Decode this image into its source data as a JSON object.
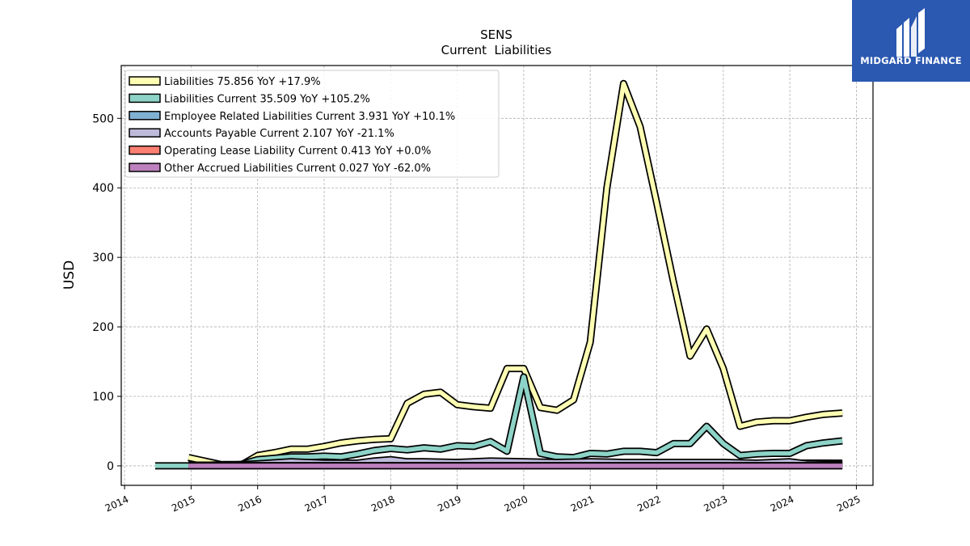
{
  "brand": {
    "name": "MIDGARD FINANCE",
    "color": "#2b58b0"
  },
  "chart_data": {
    "type": "line",
    "title": "SENS",
    "subtitle": "Current  Liabilities",
    "xlabel": "",
    "ylabel": "USD",
    "xlim": [
      2013.95,
      2025.25
    ],
    "ylim": [
      -28,
      576
    ],
    "xticks": [
      "2014",
      "2015",
      "2016",
      "2017",
      "2018",
      "2019",
      "2020",
      "2021",
      "2022",
      "2023",
      "2024",
      "2025"
    ],
    "yticks": [
      0,
      100,
      200,
      300,
      400,
      500
    ],
    "grid": true,
    "legend_position": "top-left",
    "series": [
      {
        "name": "Liabilities",
        "legend": "Liabilities  75.856 YoY +17.9%",
        "color": "#ffffb3",
        "x": [
          2014.96,
          2015.25,
          2015.5,
          2015.75,
          2016.0,
          2016.25,
          2016.5,
          2016.75,
          2017.0,
          2017.25,
          2017.5,
          2017.75,
          2018.0,
          2018.25,
          2018.5,
          2018.75,
          2019.0,
          2019.25,
          2019.5,
          2019.75,
          2020.0,
          2020.25,
          2020.5,
          2020.75,
          2021.0,
          2021.25,
          2021.5,
          2021.75,
          2022.0,
          2022.25,
          2022.5,
          2022.75,
          2023.0,
          2023.25,
          2023.5,
          2023.75,
          2024.0,
          2024.25,
          2024.5,
          2024.79
        ],
        "values": [
          12,
          6,
          1,
          1,
          15,
          19,
          24,
          24,
          28,
          33,
          36,
          38,
          39,
          90,
          103,
          106,
          88,
          85,
          83,
          140,
          140,
          84,
          80,
          95,
          178,
          400,
          550,
          488,
          378,
          265,
          158,
          197,
          140,
          57,
          63,
          65,
          65,
          70,
          74,
          76
        ]
      },
      {
        "name": "Liabilities Current",
        "legend": "Liabilities Current  35.509 YoY +105.2%",
        "color": "#8dd3c7",
        "x": [
          2014.46,
          2014.96,
          2015.25,
          2015.5,
          2015.75,
          2016.0,
          2016.25,
          2016.5,
          2016.75,
          2017.0,
          2017.25,
          2017.5,
          2017.75,
          2018.0,
          2018.25,
          2018.5,
          2018.75,
          2019.0,
          2019.25,
          2019.5,
          2019.75,
          2020.0,
          2020.25,
          2020.5,
          2020.75,
          2021.0,
          2021.25,
          2021.5,
          2021.75,
          2022.0,
          2022.25,
          2022.5,
          2022.75,
          2023.0,
          2023.25,
          2023.5,
          2023.75,
          2024.0,
          2024.25,
          2024.5,
          2024.79
        ],
        "values": [
          0,
          0,
          1,
          2,
          2,
          9,
          11,
          13,
          13,
          14,
          13,
          17,
          22,
          25,
          23,
          26,
          24,
          29,
          28,
          35,
          21,
          128,
          18,
          13,
          12,
          18,
          17,
          21,
          21,
          19,
          32,
          32,
          57,
          32,
          15,
          17,
          18,
          18,
          29,
          33,
          36
        ]
      },
      {
        "name": "Employee Related Liabilities Current",
        "legend": "Employee Related Liabilities Current  3.931 YoY +10.1%",
        "color": "#80b1d3",
        "x": [
          2014.96,
          2015.5,
          2016.0,
          2016.5,
          2017.0,
          2017.5,
          2018.0,
          2018.5,
          2019.0,
          2019.5,
          2020.0,
          2020.5,
          2021.0,
          2021.5,
          2022.0,
          2022.5,
          2023.0,
          2023.5,
          2024.0,
          2024.79
        ],
        "values": [
          1,
          1,
          2,
          2,
          2,
          3,
          3,
          3,
          4,
          4,
          4,
          4,
          4,
          4,
          4,
          4,
          4,
          4,
          4,
          3.9
        ]
      },
      {
        "name": "Accounts Payable Current",
        "legend": "Accounts Payable Current  2.107 YoY -21.1%",
        "color": "#bebada",
        "x": [
          2014.96,
          2015.5,
          2016.0,
          2016.5,
          2017.0,
          2017.5,
          2017.75,
          2018.0,
          2018.25,
          2018.5,
          2019.0,
          2019.5,
          2020.0,
          2020.5,
          2021.0,
          2021.5,
          2022.0,
          2022.5,
          2023.0,
          2023.5,
          2024.0,
          2024.25,
          2024.79
        ],
        "values": [
          1,
          1,
          3,
          6,
          4,
          4,
          7,
          9,
          6,
          6,
          5,
          7,
          6,
          5,
          6,
          5,
          5,
          5,
          5,
          4,
          6,
          3,
          2.1
        ]
      },
      {
        "name": "Operating Lease Liability Current",
        "legend": "Operating Lease Liability Current  0.413 YoY +0.0%",
        "color": "#fb8072",
        "x": [
          2014.96,
          2016.0,
          2017.0,
          2018.0,
          2019.0,
          2020.0,
          2021.0,
          2022.0,
          2023.0,
          2024.0,
          2024.79
        ],
        "values": [
          0.4,
          0.4,
          0.4,
          0.4,
          0.4,
          0.4,
          0.4,
          0.4,
          0.4,
          0.4,
          0.413
        ]
      },
      {
        "name": "Other Accrued Liabilities Current",
        "legend": "Other Accrued Liabilities Current  0.027 YoY -62.0%",
        "color": "#bc80bd",
        "x": [
          2014.96,
          2016.0,
          2017.0,
          2018.0,
          2019.0,
          2020.0,
          2021.0,
          2022.0,
          2023.0,
          2024.0,
          2024.79
        ],
        "values": [
          0.1,
          0.1,
          0.1,
          0.1,
          0.1,
          0.1,
          0.1,
          0.1,
          0.1,
          0.1,
          0.027
        ]
      }
    ]
  }
}
